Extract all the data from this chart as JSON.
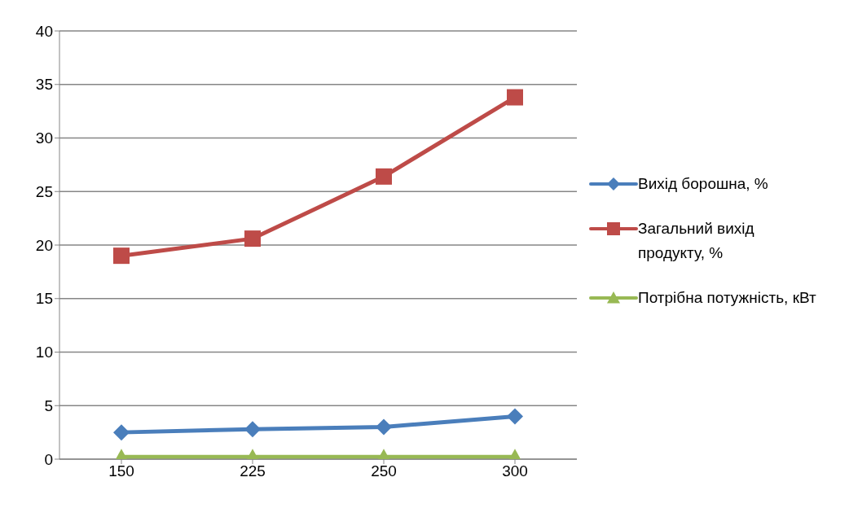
{
  "chart_data": {
    "type": "line",
    "categories": [
      "150",
      "225",
      "250",
      "300"
    ],
    "series": [
      {
        "name": "Вихід борошна, %",
        "color": "#4a7ebb",
        "marker": "diamond",
        "values": [
          2.5,
          2.8,
          3.0,
          4.0
        ]
      },
      {
        "name": "Загальний вихід продукту, %",
        "color": "#be4b48",
        "marker": "square",
        "values": [
          19.0,
          20.6,
          26.4,
          33.8
        ]
      },
      {
        "name": "Потрібна потужність, кВт",
        "color": "#98b954",
        "marker": "triangle",
        "values": [
          0.2,
          0.2,
          0.2,
          0.2
        ]
      }
    ],
    "ylim": [
      0,
      40
    ],
    "yticks": [
      0,
      5,
      10,
      15,
      20,
      25,
      30,
      35,
      40
    ],
    "grid": "y",
    "legend": "right"
  }
}
